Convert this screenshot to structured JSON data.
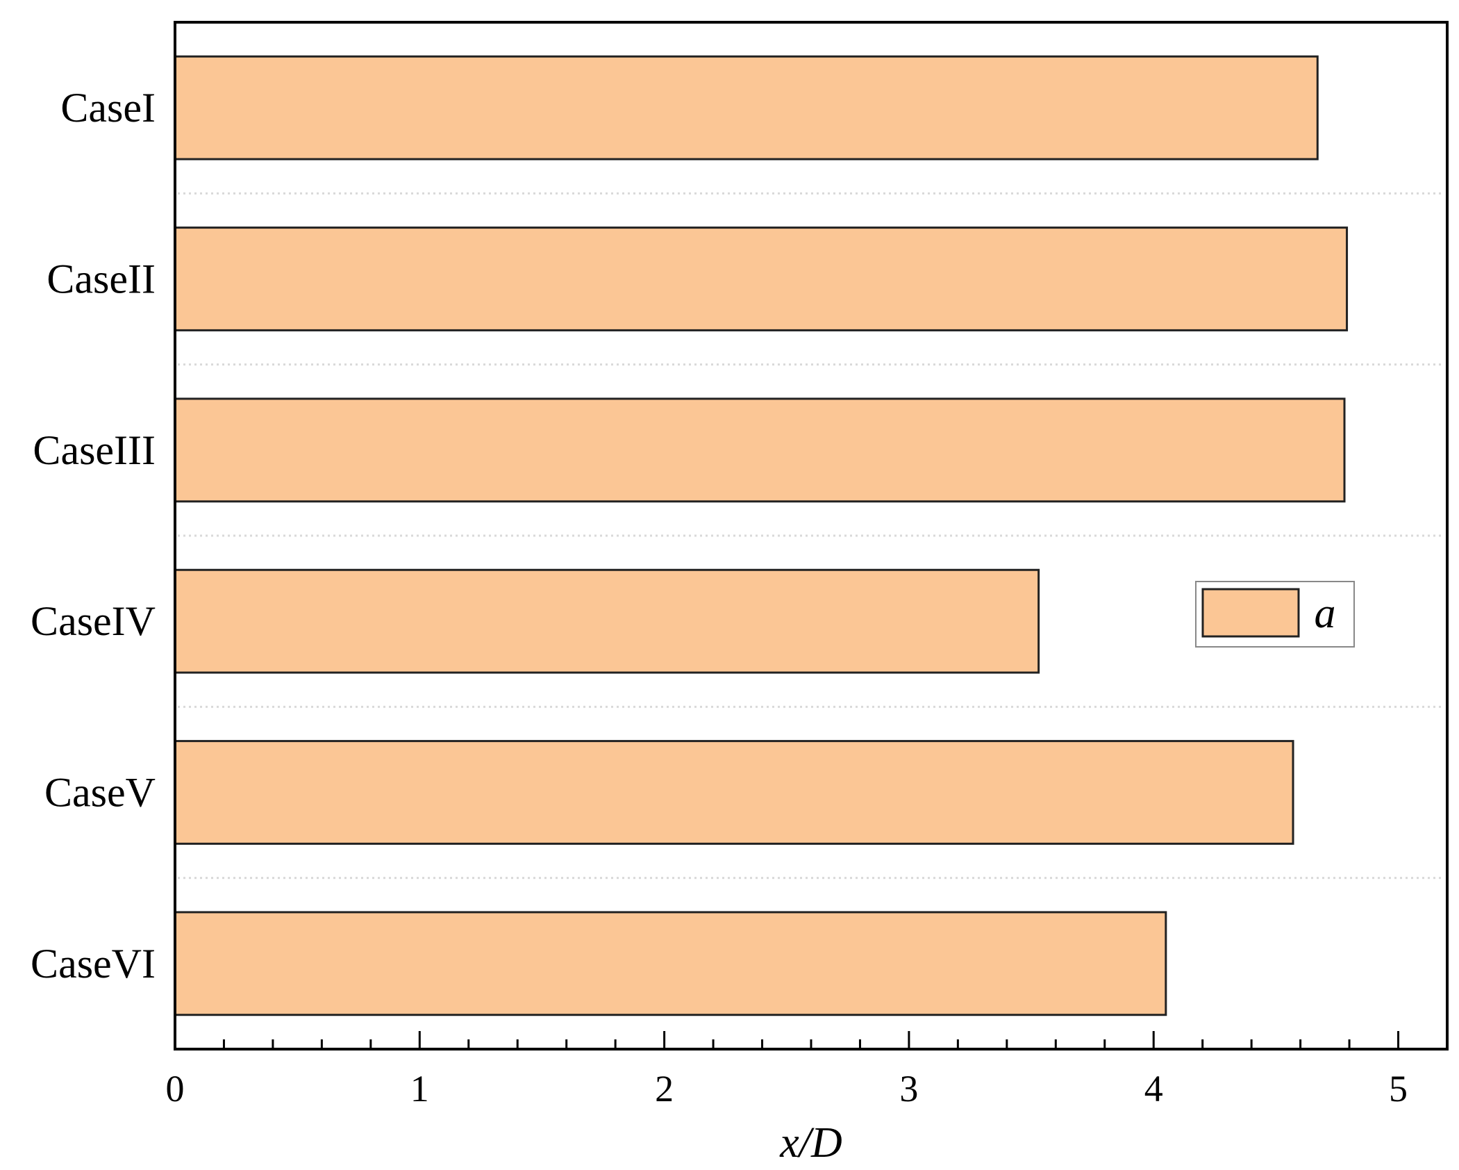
{
  "chart_data": {
    "type": "bar",
    "orientation": "horizontal",
    "categories": [
      "CaseI",
      "CaseII",
      "CaseIII",
      "CaseIV",
      "CaseV",
      "CaseVI"
    ],
    "series": [
      {
        "name": "a",
        "values": [
          4.67,
          4.79,
          4.78,
          3.53,
          4.57,
          4.05
        ]
      }
    ],
    "xlabel": "x/D",
    "ylabel": "",
    "xlim": [
      0,
      5.2
    ],
    "xticks": [
      "0",
      "1",
      "2",
      "3",
      "4",
      "5"
    ],
    "grid": "dotted horizontal separators between categories",
    "legend_position": "right",
    "colors": {
      "bar_fill": "#FBC695",
      "bar_edge": "#222222",
      "axis": "#000000",
      "grid": "#d9d9d9"
    }
  }
}
